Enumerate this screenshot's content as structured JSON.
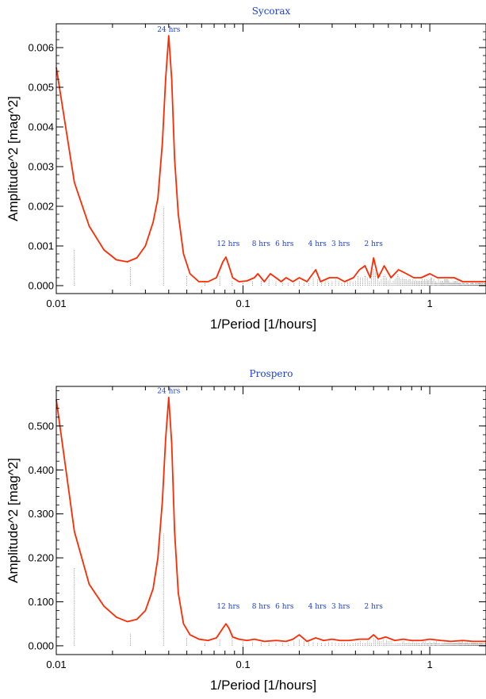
{
  "chart_data": [
    {
      "type": "line",
      "title": "Sycorax",
      "xlabel": "1/Period [1/hours]",
      "ylabel": "Amplitude^2 [mag^2]",
      "xscale": "log",
      "xlim": [
        0.01,
        2.0
      ],
      "ylim": [
        -0.0002,
        0.0066
      ],
      "x_ticks": [
        {
          "value": 0.01,
          "label": "0.01"
        },
        {
          "value": 0.1,
          "label": "0.1"
        },
        {
          "value": 1,
          "label": "1"
        }
      ],
      "y_ticks": [
        {
          "value": 0.0,
          "label": "0.000"
        },
        {
          "value": 0.001,
          "label": "0.001"
        },
        {
          "value": 0.002,
          "label": "0.002"
        },
        {
          "value": 0.003,
          "label": "0.003"
        },
        {
          "value": 0.004,
          "label": "0.004"
        },
        {
          "value": 0.005,
          "label": "0.005"
        },
        {
          "value": 0.006,
          "label": "0.006"
        }
      ],
      "series": [
        {
          "color": "#ff2a00",
          "x": [
            0.01,
            0.0125,
            0.015,
            0.018,
            0.021,
            0.024,
            0.027,
            0.03,
            0.033,
            0.035,
            0.037,
            0.0385,
            0.04,
            0.0415,
            0.043,
            0.045,
            0.048,
            0.052,
            0.058,
            0.065,
            0.072,
            0.078,
            0.081,
            0.084,
            0.088,
            0.095,
            0.105,
            0.115,
            0.12,
            0.13,
            0.14,
            0.15,
            0.16,
            0.17,
            0.185,
            0.2,
            0.22,
            0.245,
            0.26,
            0.29,
            0.32,
            0.35,
            0.39,
            0.42,
            0.45,
            0.48,
            0.5,
            0.53,
            0.57,
            0.62,
            0.68,
            0.75,
            0.82,
            0.9,
            1.0,
            1.1,
            1.2,
            1.35,
            1.5,
            1.7,
            2.0
          ],
          "y": [
            0.0055,
            0.0026,
            0.0015,
            0.0009,
            0.00065,
            0.0006,
            0.0007,
            0.001,
            0.0016,
            0.0022,
            0.0036,
            0.0052,
            0.0063,
            0.0052,
            0.0032,
            0.0018,
            0.0008,
            0.0003,
            0.0001,
            0.0001,
            0.0002,
            0.0006,
            0.00072,
            0.0005,
            0.0002,
            0.0001,
            0.00012,
            0.0002,
            0.0003,
            0.0001,
            0.0003,
            0.0002,
            0.0001,
            0.0002,
            0.0001,
            0.0002,
            0.0001,
            0.0004,
            0.0001,
            0.0002,
            0.0002,
            0.0001,
            0.0002,
            0.0004,
            0.0005,
            0.0002,
            0.0007,
            0.0002,
            0.0005,
            0.0002,
            0.0004,
            0.0003,
            0.0002,
            0.0002,
            0.0003,
            0.0002,
            0.0002,
            0.0002,
            0.0001,
            0.0001,
            0.0001
          ]
        }
      ],
      "annotations": [
        {
          "text": "24 hrs",
          "x": 0.04,
          "y": 0.0064
        },
        {
          "text": "12 hrs",
          "x": 0.0833,
          "y": 0.001
        },
        {
          "text": "8 hrs",
          "x": 0.125,
          "y": 0.001
        },
        {
          "text": "6 hrs",
          "x": 0.1667,
          "y": 0.001
        },
        {
          "text": "4 hrs",
          "x": 0.25,
          "y": 0.001
        },
        {
          "text": "3 hrs",
          "x": 0.3333,
          "y": 0.001
        },
        {
          "text": "2 hrs",
          "x": 0.5,
          "y": 0.001
        }
      ]
    },
    {
      "type": "line",
      "title": "Prospero",
      "xlabel": "1/Period [1/hours]",
      "ylabel": "Amplitude^2 [mag^2]",
      "xscale": "log",
      "xlim": [
        0.01,
        2.0
      ],
      "ylim": [
        -0.02,
        0.59
      ],
      "x_ticks": [
        {
          "value": 0.01,
          "label": "0.01"
        },
        {
          "value": 0.1,
          "label": "0.1"
        },
        {
          "value": 1,
          "label": "1"
        }
      ],
      "y_ticks": [
        {
          "value": 0.0,
          "label": "0.000"
        },
        {
          "value": 0.1,
          "label": "0.100"
        },
        {
          "value": 0.2,
          "label": "0.200"
        },
        {
          "value": 0.3,
          "label": "0.300"
        },
        {
          "value": 0.4,
          "label": "0.400"
        },
        {
          "value": 0.5,
          "label": "0.500"
        }
      ],
      "series": [
        {
          "color": "#ff2a00",
          "x": [
            0.01,
            0.0125,
            0.015,
            0.018,
            0.021,
            0.024,
            0.027,
            0.03,
            0.033,
            0.035,
            0.037,
            0.0385,
            0.04,
            0.0415,
            0.043,
            0.045,
            0.048,
            0.052,
            0.058,
            0.065,
            0.072,
            0.078,
            0.081,
            0.084,
            0.088,
            0.095,
            0.105,
            0.115,
            0.13,
            0.15,
            0.17,
            0.185,
            0.2,
            0.22,
            0.245,
            0.27,
            0.3,
            0.33,
            0.37,
            0.42,
            0.47,
            0.5,
            0.53,
            0.58,
            0.65,
            0.72,
            0.8,
            0.9,
            1.0,
            1.15,
            1.3,
            1.5,
            1.7,
            2.0
          ],
          "y": [
            0.56,
            0.26,
            0.14,
            0.09,
            0.065,
            0.055,
            0.06,
            0.08,
            0.13,
            0.2,
            0.33,
            0.47,
            0.565,
            0.46,
            0.26,
            0.12,
            0.05,
            0.025,
            0.015,
            0.012,
            0.018,
            0.04,
            0.05,
            0.04,
            0.02,
            0.015,
            0.012,
            0.015,
            0.01,
            0.012,
            0.01,
            0.015,
            0.025,
            0.01,
            0.018,
            0.012,
            0.015,
            0.012,
            0.012,
            0.015,
            0.015,
            0.025,
            0.015,
            0.02,
            0.012,
            0.015,
            0.012,
            0.012,
            0.015,
            0.012,
            0.01,
            0.012,
            0.01,
            0.01
          ]
        }
      ],
      "annotations": [
        {
          "text": "24 hrs",
          "x": 0.04,
          "y": 0.575
        },
        {
          "text": "12 hrs",
          "x": 0.0833,
          "y": 0.085
        },
        {
          "text": "8 hrs",
          "x": 0.125,
          "y": 0.085
        },
        {
          "text": "6 hrs",
          "x": 0.1667,
          "y": 0.085
        },
        {
          "text": "4 hrs",
          "x": 0.25,
          "y": 0.085
        },
        {
          "text": "3 hrs",
          "x": 0.3333,
          "y": 0.085
        },
        {
          "text": "2 hrs",
          "x": 0.5,
          "y": 0.085
        }
      ]
    }
  ]
}
